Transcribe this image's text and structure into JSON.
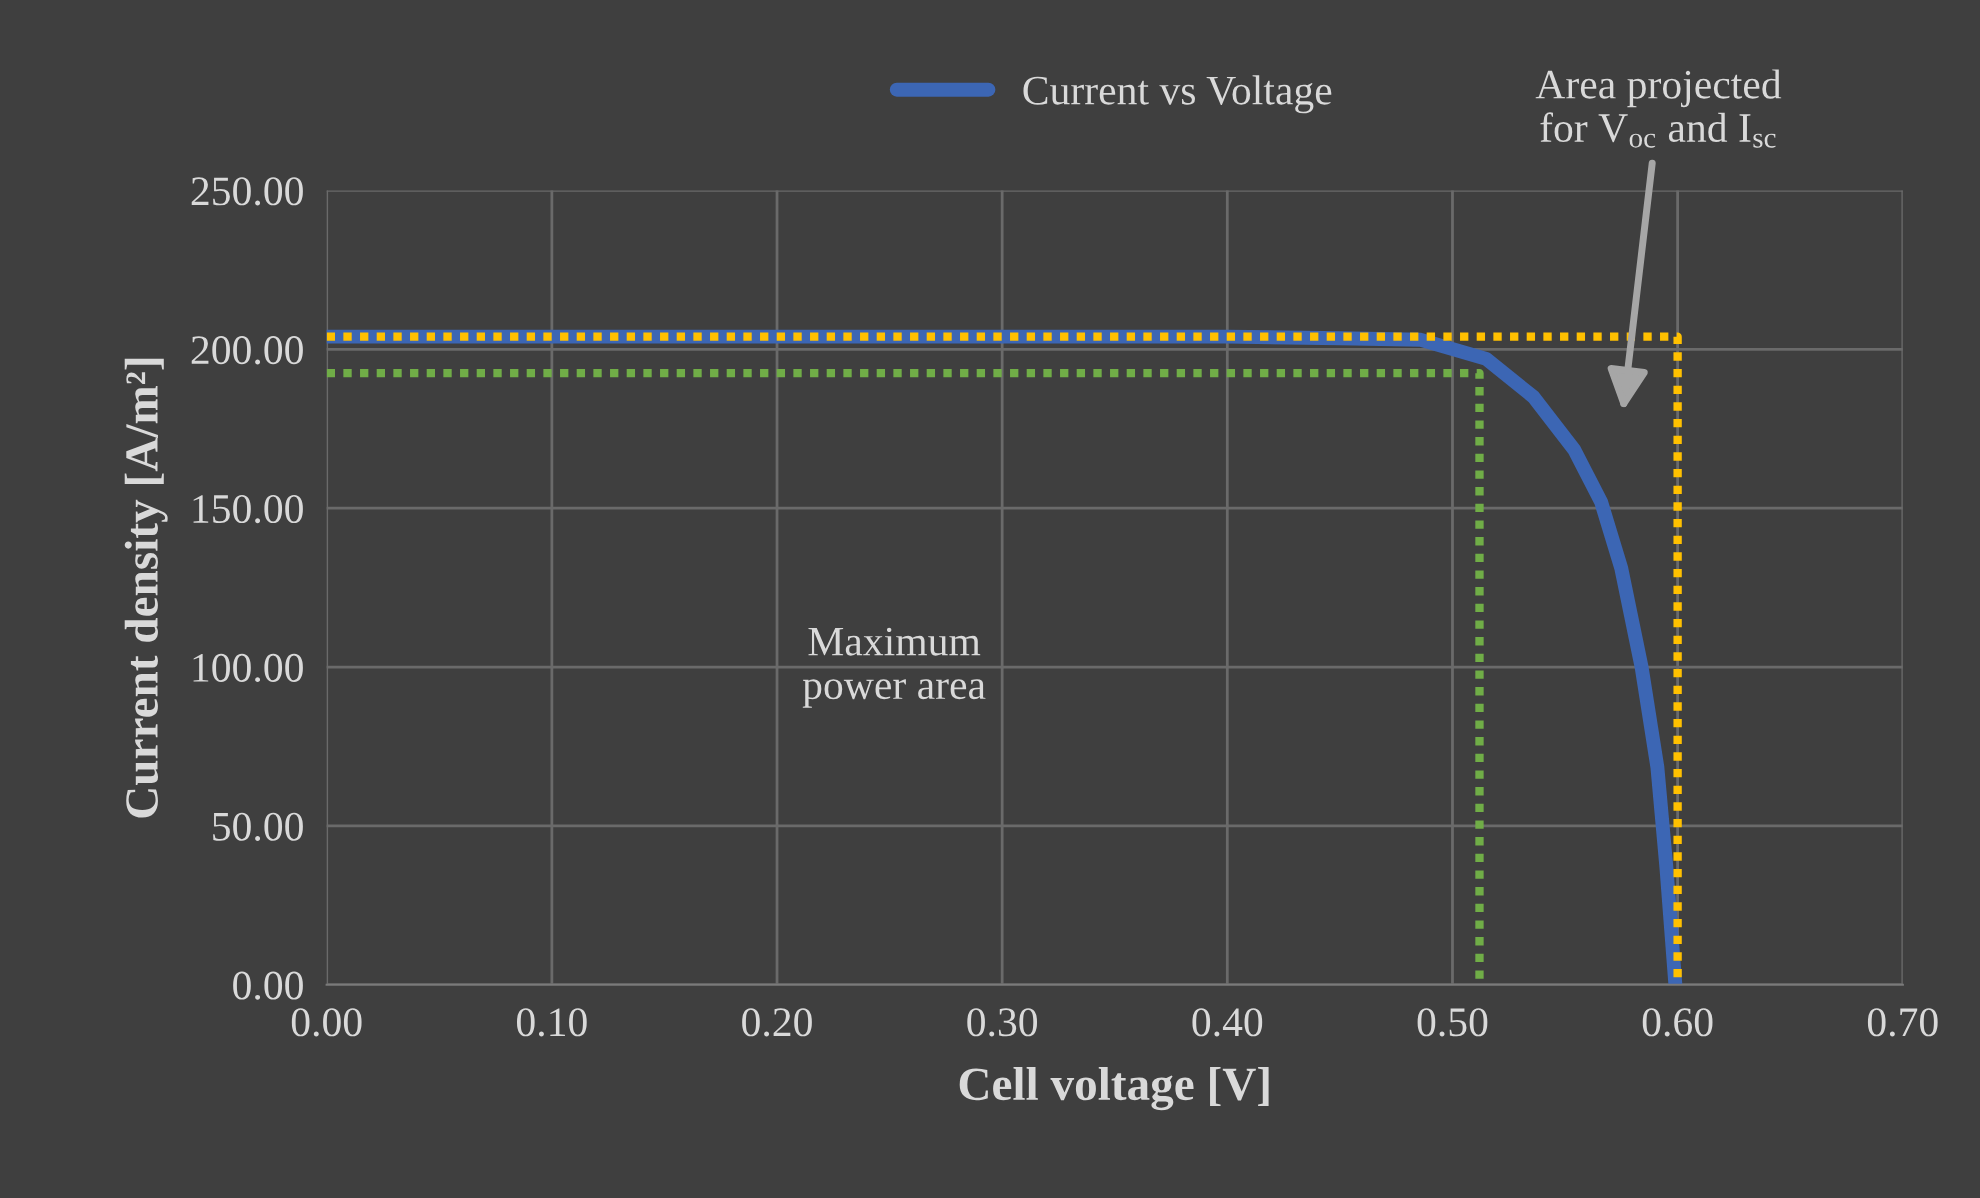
{
  "chart_data": {
    "type": "line",
    "xlabel": "Cell voltage [V]",
    "ylabel": "Current density [A/m²]",
    "series": [
      {
        "name": "Current vs Voltage",
        "color": "#3c66b4",
        "x": [
          0,
          0.1,
          0.2,
          0.3,
          0.4,
          0.45,
          0.486,
          0.515,
          0.536,
          0.554,
          0.566,
          0.575,
          0.584,
          0.591,
          0.595,
          0.599
        ],
        "values": [
          204,
          204,
          204,
          204,
          204,
          203.5,
          203,
          197,
          185,
          168.5,
          152,
          131,
          100,
          68.5,
          37,
          0
        ]
      },
      {
        "color": "#ffc000",
        "line_style": "dotted",
        "x": [
          0,
          0.6,
          0.6
        ],
        "values": [
          204,
          204,
          0
        ]
      },
      {
        "color": "#70ad47",
        "line_style": "dotted",
        "x": [
          0,
          0.512,
          0.512
        ],
        "values": [
          192.5,
          192.5,
          0
        ]
      }
    ],
    "xlim": [
      0,
      0.7
    ],
    "ylim": [
      0,
      250
    ],
    "xticks": [
      {
        "value": 0,
        "label": "0.00"
      },
      {
        "value": 0.1,
        "label": "0.10"
      },
      {
        "value": 0.2,
        "label": "0.20"
      },
      {
        "value": 0.3,
        "label": "0.30"
      },
      {
        "value": 0.4,
        "label": "0.40"
      },
      {
        "value": 0.5,
        "label": "0.50"
      },
      {
        "value": 0.6,
        "label": "0.60"
      },
      {
        "value": 0.7,
        "label": "0.70"
      }
    ],
    "yticks": [
      {
        "value": 0,
        "label": "0.00"
      },
      {
        "value": 50,
        "label": "50.00"
      },
      {
        "value": 100,
        "label": "100.00"
      },
      {
        "value": 150,
        "label": "150.00"
      },
      {
        "value": 200,
        "label": "200.00"
      },
      {
        "value": 250,
        "label": "250.00"
      }
    ],
    "annotations": [
      "Area projected\nfor V$_{oc}$ and I$_{sc}$",
      "Maximum\npower area"
    ],
    "grid": true,
    "legend": "top",
    "line_style": "solid",
    "marker": "none"
  }
}
